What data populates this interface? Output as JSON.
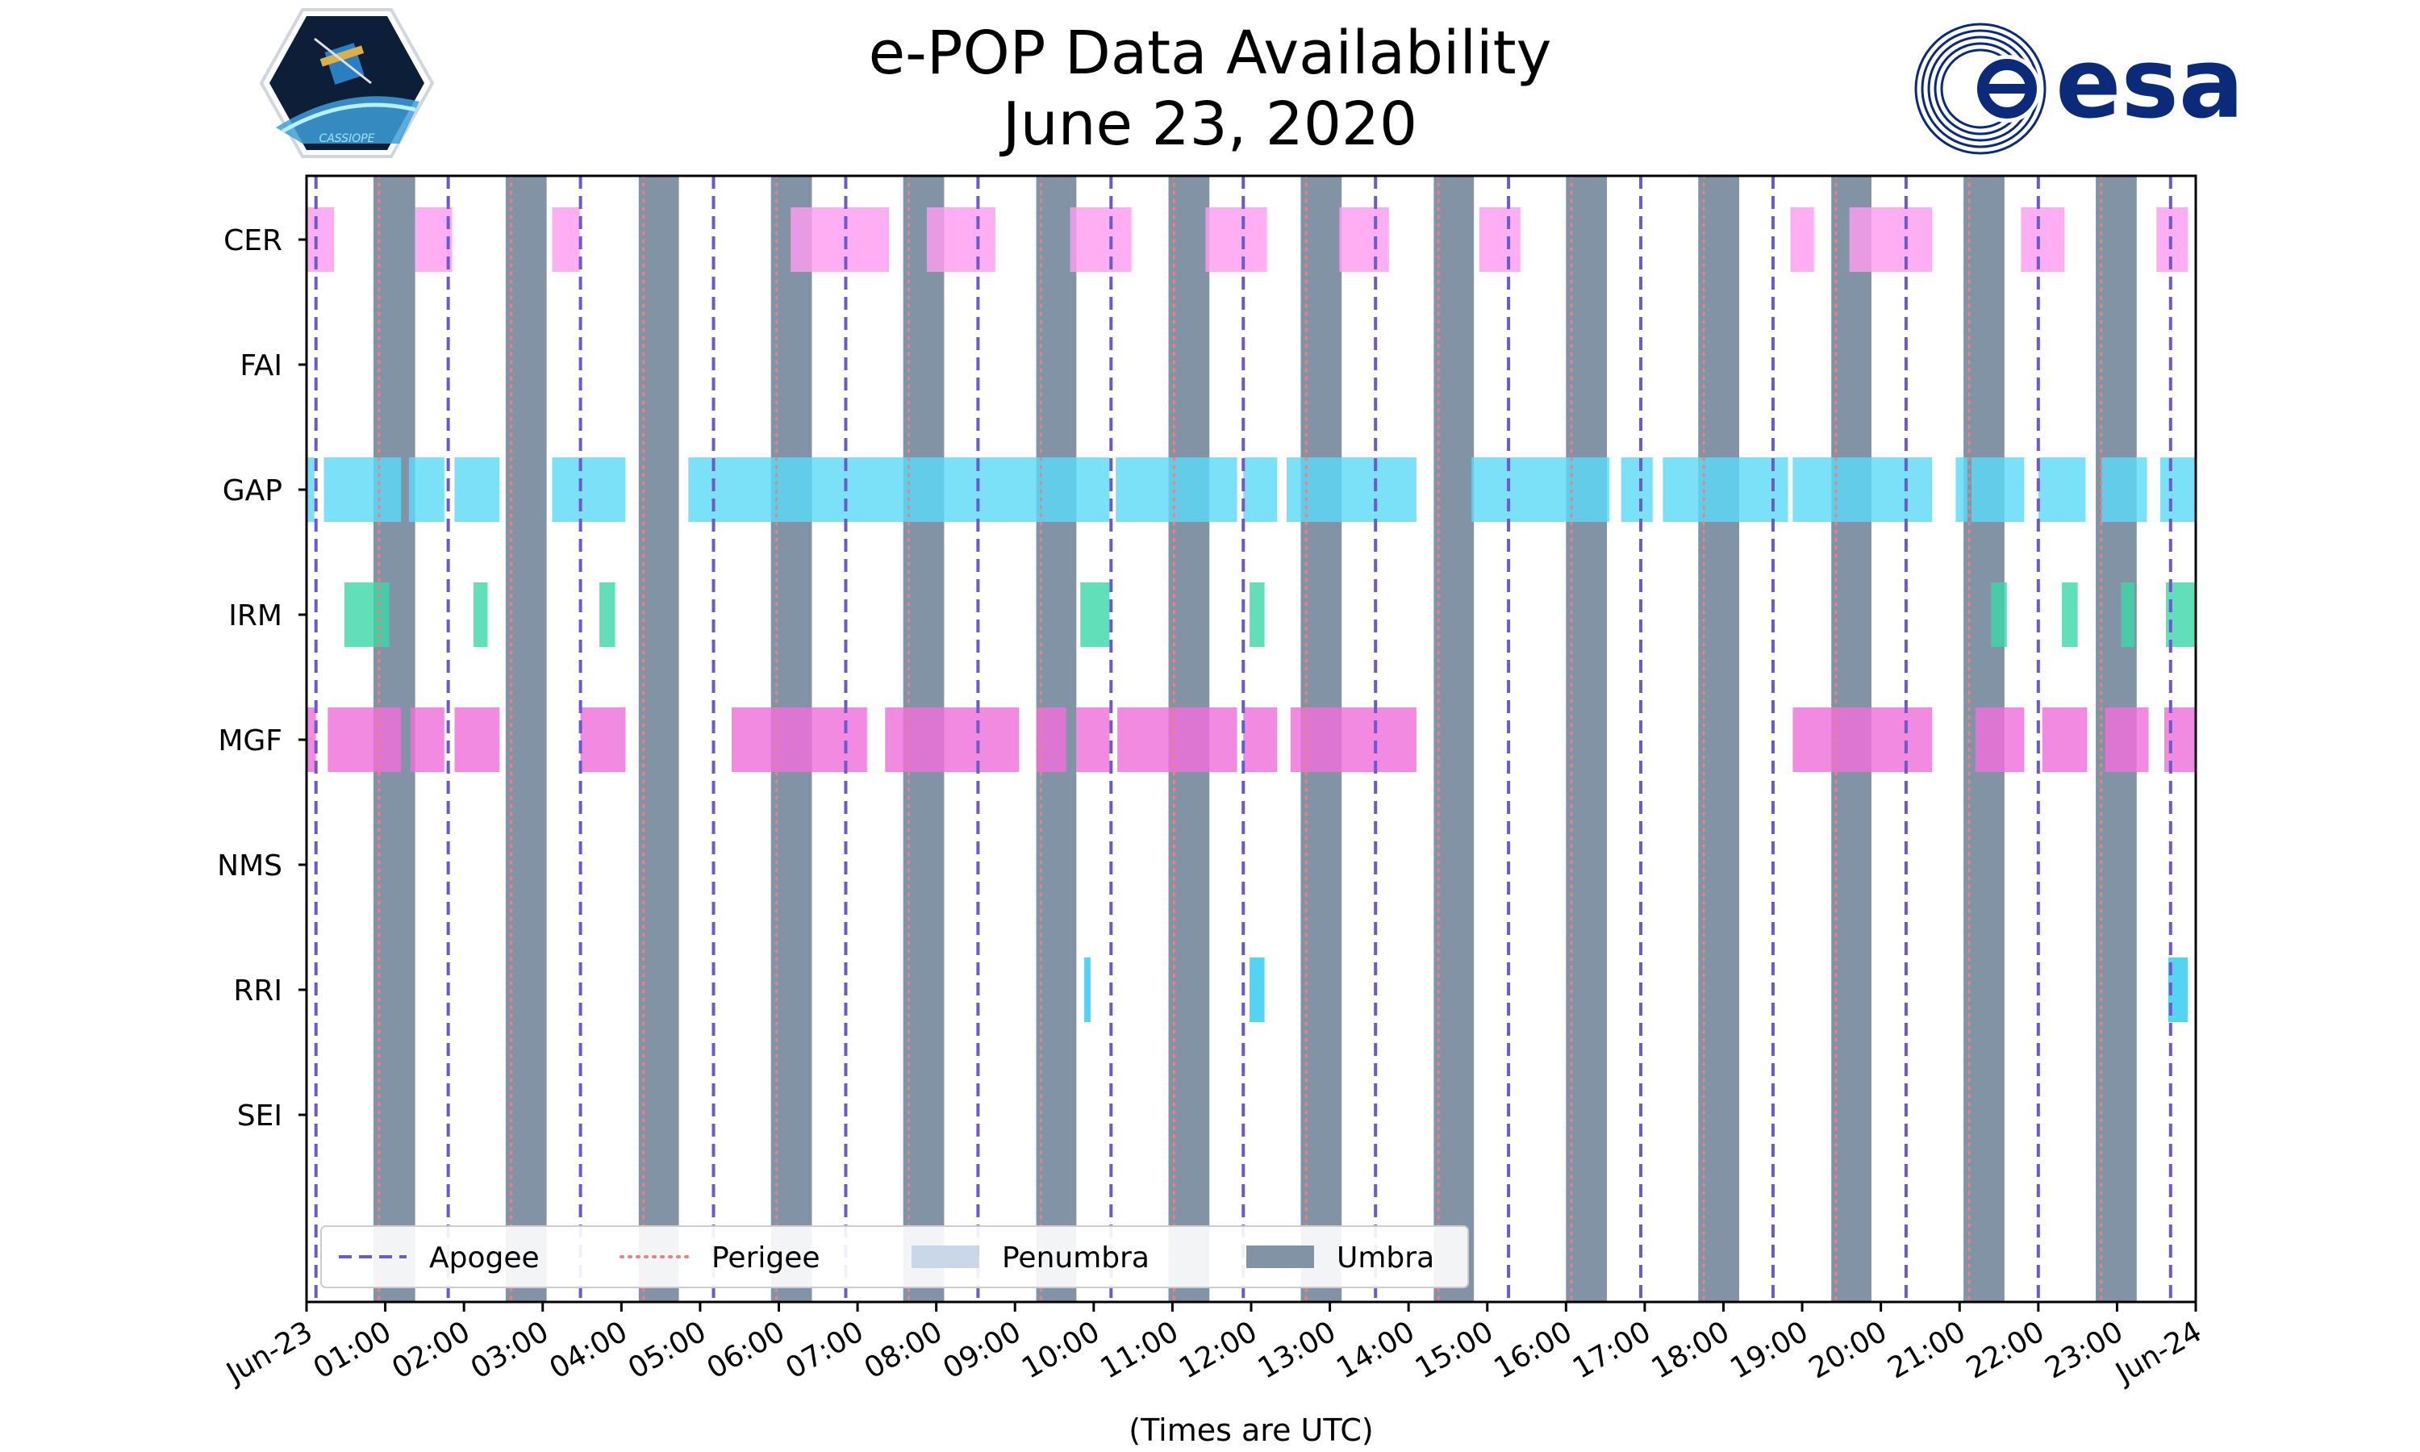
{
  "chart_data": {
    "type": "timeline",
    "title": "e-POP Data Availability",
    "subtitle": "June 23, 2020",
    "xlabel": "(Times are UTC)",
    "x_unit": "hours UTC",
    "xlim": [
      0,
      24
    ],
    "x_ticks": [
      {
        "t": 0,
        "label": "Jun-23"
      },
      {
        "t": 1,
        "label": "01:00"
      },
      {
        "t": 2,
        "label": "02:00"
      },
      {
        "t": 3,
        "label": "03:00"
      },
      {
        "t": 4,
        "label": "04:00"
      },
      {
        "t": 5,
        "label": "05:00"
      },
      {
        "t": 6,
        "label": "06:00"
      },
      {
        "t": 7,
        "label": "07:00"
      },
      {
        "t": 8,
        "label": "08:00"
      },
      {
        "t": 9,
        "label": "09:00"
      },
      {
        "t": 10,
        "label": "10:00"
      },
      {
        "t": 11,
        "label": "11:00"
      },
      {
        "t": 12,
        "label": "12:00"
      },
      {
        "t": 13,
        "label": "13:00"
      },
      {
        "t": 14,
        "label": "14:00"
      },
      {
        "t": 15,
        "label": "15:00"
      },
      {
        "t": 16,
        "label": "16:00"
      },
      {
        "t": 17,
        "label": "17:00"
      },
      {
        "t": 18,
        "label": "18:00"
      },
      {
        "t": 19,
        "label": "19:00"
      },
      {
        "t": 20,
        "label": "20:00"
      },
      {
        "t": 21,
        "label": "21:00"
      },
      {
        "t": 22,
        "label": "22:00"
      },
      {
        "t": 23,
        "label": "23:00"
      },
      {
        "t": 24,
        "label": "Jun-24"
      }
    ],
    "instruments": [
      "CER",
      "FAI",
      "GAP",
      "IRM",
      "MGF",
      "NMS",
      "RRI",
      "SEI"
    ],
    "legend": {
      "location": "bottom-left",
      "entries": [
        {
          "label": "Apogee",
          "style": "dashed",
          "color": "#6a5acd"
        },
        {
          "label": "Perigee",
          "style": "dotted",
          "color": "#f08080"
        },
        {
          "label": "Penumbra",
          "style": "patch",
          "color": "#c9d7e8"
        },
        {
          "label": "Umbra",
          "style": "patch",
          "color": "#8293a6"
        }
      ]
    },
    "umbra": [
      [
        0.85,
        1.38
      ],
      [
        2.53,
        3.05
      ],
      [
        4.22,
        4.73
      ],
      [
        5.9,
        6.42
      ],
      [
        7.58,
        8.1
      ],
      [
        9.27,
        9.78
      ],
      [
        10.95,
        11.47
      ],
      [
        12.63,
        13.15
      ],
      [
        14.32,
        14.83
      ],
      [
        16.0,
        16.52
      ],
      [
        17.68,
        18.2
      ],
      [
        19.37,
        19.88
      ],
      [
        21.05,
        21.57
      ],
      [
        22.73,
        23.25
      ]
    ],
    "apogee": [
      0.12,
      1.8,
      3.48,
      5.17,
      6.85,
      8.53,
      10.22,
      11.9,
      13.58,
      15.27,
      16.95,
      18.63,
      20.32,
      22.0,
      23.68
    ],
    "perigee": [
      0.92,
      2.6,
      4.28,
      5.97,
      7.65,
      9.33,
      11.02,
      12.7,
      14.38,
      16.07,
      17.75,
      19.43,
      21.12,
      22.8
    ],
    "series": [
      {
        "name": "CER",
        "color": "#ff9cf0",
        "intervals": [
          [
            0.0,
            0.35
          ],
          [
            1.38,
            1.85
          ],
          [
            3.12,
            3.47
          ],
          [
            6.15,
            7.4
          ],
          [
            7.88,
            8.75
          ],
          [
            9.7,
            10.48
          ],
          [
            11.42,
            12.2
          ],
          [
            13.12,
            13.75
          ],
          [
            14.9,
            15.42
          ],
          [
            18.85,
            19.15
          ],
          [
            19.6,
            20.65
          ],
          [
            21.78,
            22.33
          ],
          [
            23.5,
            23.9
          ]
        ]
      },
      {
        "name": "FAI",
        "color": "#ff9cf0",
        "intervals": []
      },
      {
        "name": "GAP",
        "color": "#5ddaf8",
        "intervals": [
          [
            0.0,
            0.1
          ],
          [
            0.22,
            1.2
          ],
          [
            1.3,
            1.75
          ],
          [
            1.88,
            2.45
          ],
          [
            3.12,
            4.05
          ],
          [
            4.85,
            10.2
          ],
          [
            10.28,
            11.82
          ],
          [
            11.9,
            12.33
          ],
          [
            12.45,
            14.1
          ],
          [
            14.8,
            16.55
          ],
          [
            16.7,
            17.1
          ],
          [
            17.23,
            18.82
          ],
          [
            18.88,
            20.65
          ],
          [
            20.95,
            21.1
          ],
          [
            21.15,
            21.82
          ],
          [
            22.0,
            22.6
          ],
          [
            22.8,
            23.38
          ],
          [
            23.55,
            24.0
          ]
        ]
      },
      {
        "name": "IRM",
        "color": "#3dd8a8",
        "intervals": [
          [
            0.48,
            1.05
          ],
          [
            2.12,
            2.3
          ],
          [
            3.72,
            3.92
          ],
          [
            9.83,
            10.2
          ],
          [
            11.98,
            12.17
          ],
          [
            21.4,
            21.6
          ],
          [
            22.3,
            22.5
          ],
          [
            23.05,
            23.22
          ],
          [
            23.62,
            24.0
          ]
        ]
      },
      {
        "name": "MGF",
        "color": "#f070dc",
        "intervals": [
          [
            0.0,
            0.12
          ],
          [
            0.27,
            1.2
          ],
          [
            1.32,
            1.75
          ],
          [
            1.88,
            2.45
          ],
          [
            3.48,
            4.05
          ],
          [
            5.4,
            7.12
          ],
          [
            7.35,
            9.05
          ],
          [
            9.27,
            9.65
          ],
          [
            9.78,
            10.2
          ],
          [
            10.3,
            11.82
          ],
          [
            11.9,
            12.33
          ],
          [
            12.5,
            14.1
          ],
          [
            18.88,
            20.65
          ],
          [
            21.2,
            21.82
          ],
          [
            22.05,
            22.62
          ],
          [
            22.85,
            23.4
          ],
          [
            23.6,
            24.0
          ]
        ]
      },
      {
        "name": "NMS",
        "color": "#5ddaf8",
        "intervals": []
      },
      {
        "name": "RRI",
        "color": "#2ecbf0",
        "intervals": [
          [
            9.88,
            9.96
          ],
          [
            11.98,
            12.17
          ],
          [
            23.65,
            23.9
          ]
        ]
      },
      {
        "name": "SEI",
        "color": "#5ddaf8",
        "intervals": []
      }
    ]
  },
  "logos": {
    "left_text": "CASSIOPE",
    "right_text": "esa"
  }
}
